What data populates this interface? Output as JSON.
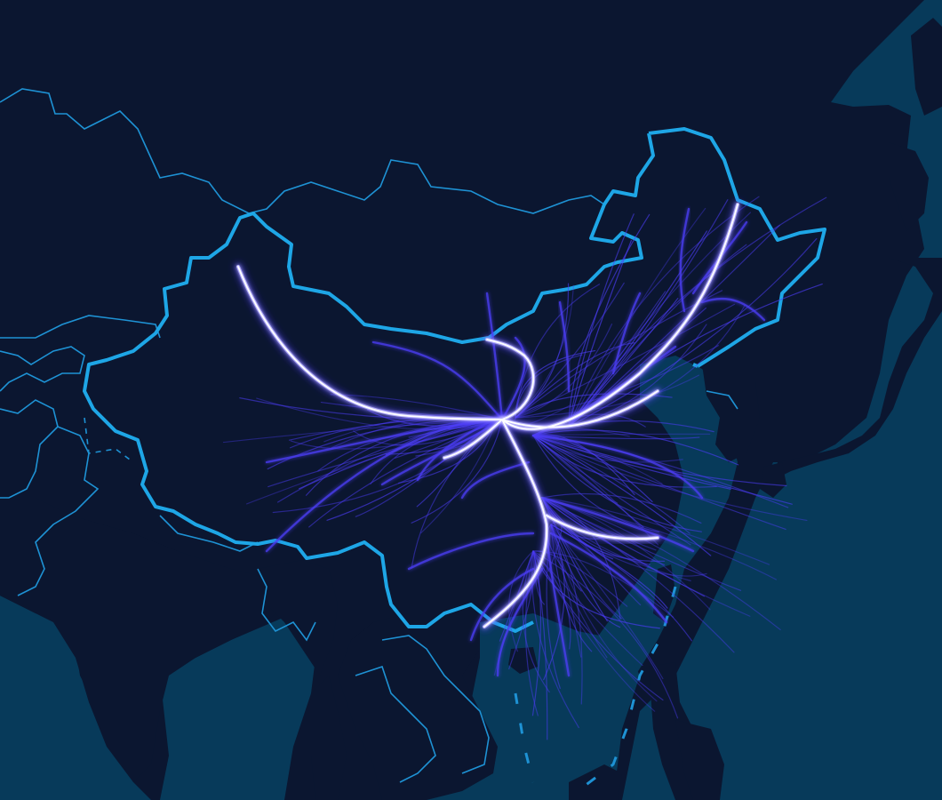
{
  "map": {
    "colors": {
      "ocean": "#073a5a",
      "land": "#0b1630",
      "border": "#1e92d4",
      "china_border": "#1ea6e6",
      "flow": "#4b3cf5",
      "flow_core": "#ffffff"
    },
    "layers": [
      "ocean",
      "land",
      "country-borders",
      "china-border",
      "disputed-boundary",
      "flow-lines"
    ],
    "flow_style": "white glowing core fading into violet-blue branches"
  }
}
